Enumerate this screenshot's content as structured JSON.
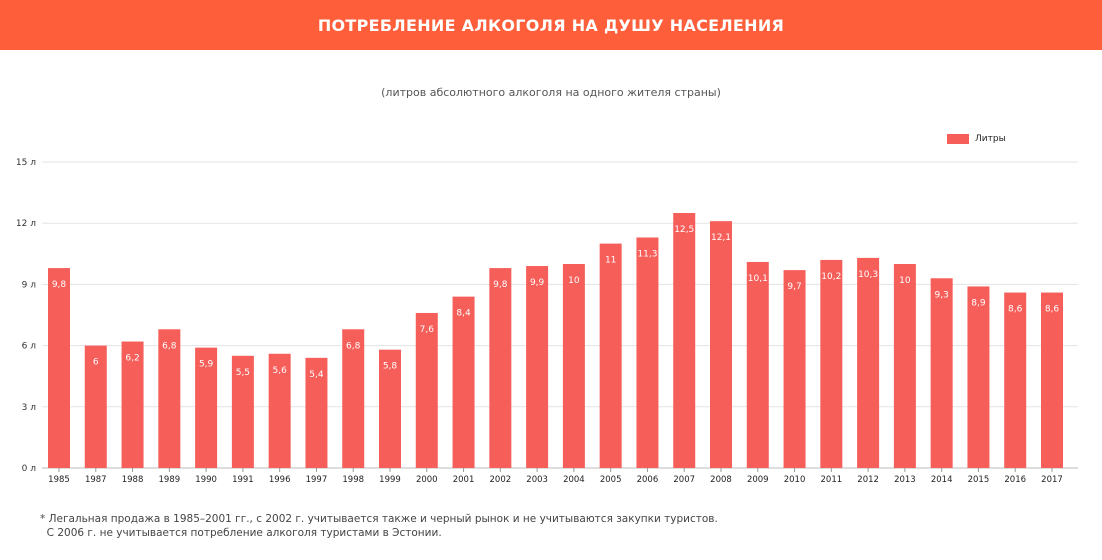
{
  "header": {
    "title": "ПОТРЕБЛЕНИЕ АЛКОГОЛЯ НА ДУШУ НАСЕЛЕНИЯ"
  },
  "subtitle": "(литров абсолютного алкоголя на одного жителя страны)",
  "legend": {
    "label": "Литры",
    "color": "#f65e5a"
  },
  "footnote": {
    "line1": "* Легальная продажа в 1985–2001 гг., с 2002 г. учитывается также и черный рынок и не учитываются закупки туристов.",
    "line2": "  С 2006 г. не учитывается потребление алкоголя туристами в Эстонии."
  },
  "chart_data": {
    "type": "bar",
    "categories": [
      "1985",
      "1987",
      "1988",
      "1989",
      "1990",
      "1991",
      "1996",
      "1997",
      "1998",
      "1999",
      "2000",
      "2001",
      "2002",
      "2003",
      "2004",
      "2005",
      "2006",
      "2007",
      "2008",
      "2009",
      "2010",
      "2011",
      "2012",
      "2013",
      "2014",
      "2015",
      "2016",
      "2017"
    ],
    "series": [
      {
        "name": "Литры",
        "values": [
          9.8,
          6,
          6.2,
          6.8,
          5.9,
          5.5,
          5.6,
          5.4,
          6.8,
          5.8,
          7.6,
          8.4,
          9.8,
          9.9,
          10,
          11,
          11.3,
          12.5,
          12.1,
          10.1,
          9.7,
          10.2,
          10.3,
          10,
          9.3,
          8.9,
          8.6,
          8.6
        ]
      }
    ],
    "value_labels": [
      "9,8",
      "6",
      "6,2",
      "6,8",
      "5,9",
      "5,5",
      "5,6",
      "5,4",
      "6,8",
      "5,8",
      "7,6",
      "8,4",
      "9,8",
      "9,9",
      "10",
      "11",
      "11,3",
      "12,5",
      "12,1",
      "10,1",
      "9,7",
      "10,2",
      "10,3",
      "10",
      "9,3",
      "8,9",
      "8,6",
      "8,6"
    ],
    "yticks": [
      0,
      3,
      6,
      9,
      12,
      15
    ],
    "ytick_labels": [
      "0 л",
      "3 л",
      "6 л",
      "9 л",
      "12 л",
      "15 л"
    ],
    "ylim": [
      0,
      15
    ],
    "grid": true,
    "legend_position": "top-right",
    "bar_color": "#f65e5a"
  }
}
